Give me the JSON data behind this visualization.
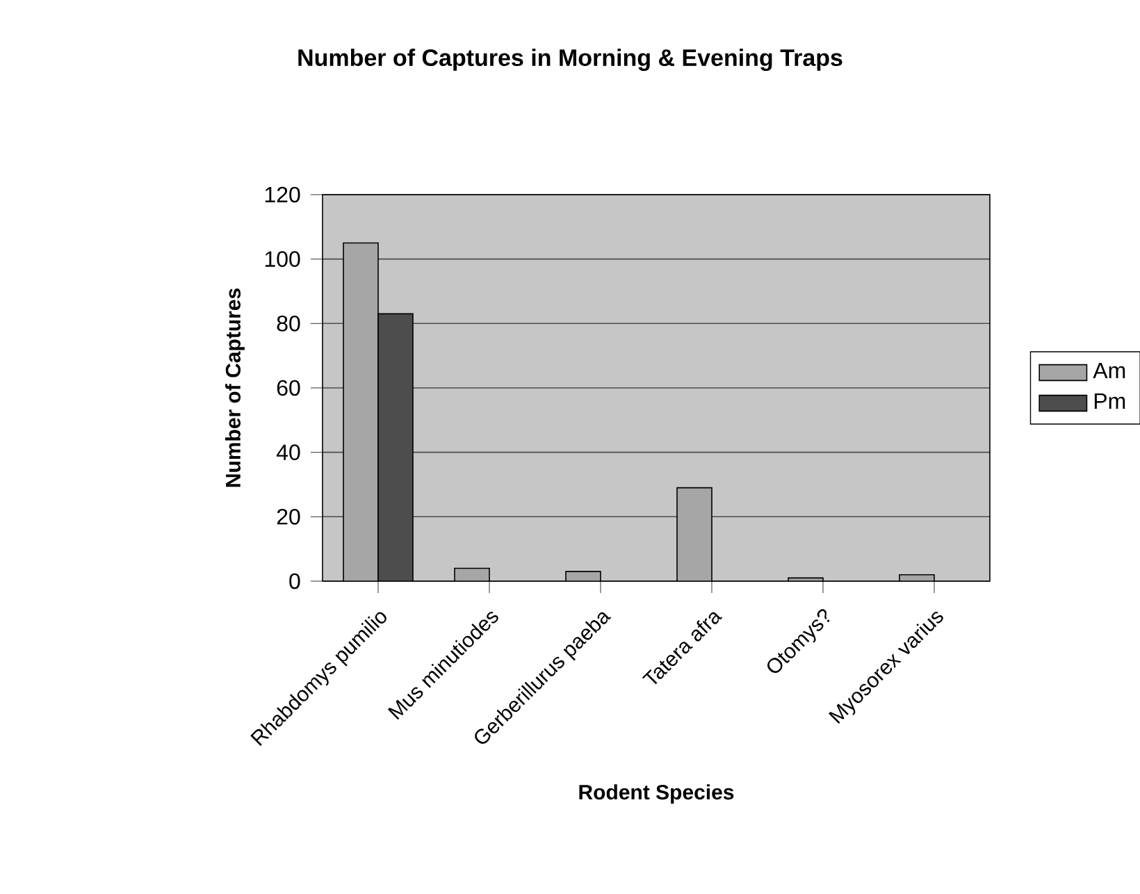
{
  "chart_data": {
    "type": "bar",
    "title": "Number of Captures in Morning & Evening Traps",
    "xlabel": "Rodent Species",
    "ylabel": "Number of Captures",
    "categories": [
      "Rhabdomys pumilio",
      "Mus minutiodes",
      "Gerberillurus paeba",
      "Tatera afra",
      "Otomys?",
      "Myosorex varius"
    ],
    "series": [
      {
        "name": "Am",
        "color": "#a6a6a6",
        "values": [
          105,
          4,
          3,
          29,
          1,
          2
        ]
      },
      {
        "name": "Pm",
        "color": "#4d4d4d",
        "values": [
          83,
          null,
          null,
          null,
          null,
          null
        ]
      }
    ],
    "ylim": [
      0,
      120
    ],
    "yticks": [
      0,
      20,
      40,
      60,
      80,
      100,
      120
    ],
    "grid": "y",
    "legend": "right"
  }
}
